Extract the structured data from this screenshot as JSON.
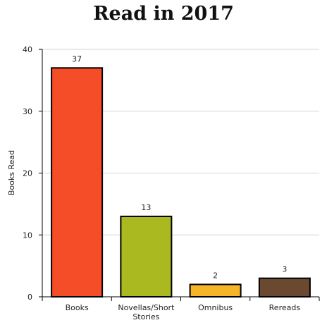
{
  "chart_data": {
    "type": "bar",
    "title": "Read in 2017",
    "xlabel": "",
    "ylabel": "Books Read",
    "ylim": [
      0,
      40
    ],
    "yticks": [
      0,
      10,
      20,
      30,
      40
    ],
    "grid": true,
    "categories": [
      "Books",
      "Novellas/Short Stories",
      "Omnibus",
      "Rereads"
    ],
    "category_lines": [
      [
        "Books"
      ],
      [
        "Novellas/Short",
        "Stories"
      ],
      [
        "Omnibus"
      ],
      [
        "Rereads"
      ]
    ],
    "values": [
      37,
      13,
      2,
      3
    ],
    "colors": [
      "#f44d27",
      "#a9b91f",
      "#f6b427",
      "#6b4931"
    ]
  }
}
